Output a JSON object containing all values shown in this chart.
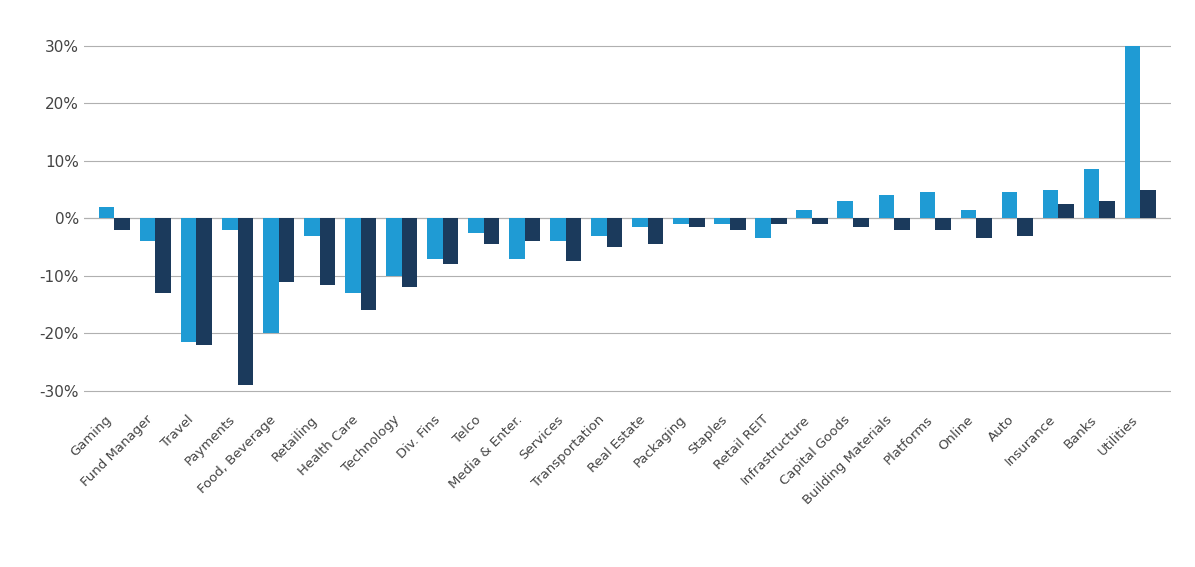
{
  "categories": [
    "Gaming",
    "Fund Manager",
    "Travel",
    "Payments",
    "Food, Beverage",
    "Retailing",
    "Health Care",
    "Technology",
    "Div. Fins",
    "Telco",
    "Media & Enter.",
    "Services",
    "Transportation",
    "Real Estate",
    "Packaging",
    "Staples",
    "Retail REIT",
    "Infrastructure",
    "Capital Goods",
    "Building Materials",
    "Platforms",
    "Online",
    "Auto",
    "Insurance",
    "Banks",
    "Utilities"
  ],
  "values_light": [
    2.0,
    -4.0,
    -21.5,
    -2.0,
    -20.0,
    -3.0,
    -13.0,
    -10.0,
    -7.0,
    -2.5,
    -7.0,
    -4.0,
    -3.0,
    -1.5,
    -1.0,
    -1.0,
    -3.5,
    1.5,
    3.0,
    4.0,
    4.5,
    1.5,
    4.5,
    5.0,
    8.5,
    30.0
  ],
  "values_dark": [
    -2.0,
    -13.0,
    -22.0,
    -29.0,
    -11.0,
    -11.5,
    -16.0,
    -12.0,
    -8.0,
    -4.5,
    -4.0,
    -7.5,
    -5.0,
    -4.5,
    -1.5,
    -2.0,
    -1.0,
    -1.0,
    -1.5,
    -2.0,
    -2.0,
    -3.5,
    -3.0,
    2.5,
    3.0,
    5.0
  ],
  "color_light": "#1F9BD4",
  "color_dark": "#1B3A5C",
  "ylim": [
    -33,
    34
  ],
  "yticks": [
    -30,
    -20,
    -10,
    0,
    10,
    20,
    30
  ],
  "ytick_labels": [
    "-30%",
    "-20%",
    "-10%",
    "0%",
    "10%",
    "20%",
    "30%"
  ],
  "background_color": "#ffffff",
  "grid_color": "#b0b0b0",
  "bar_width": 0.38,
  "figsize": [
    11.95,
    5.67
  ],
  "dpi": 100
}
